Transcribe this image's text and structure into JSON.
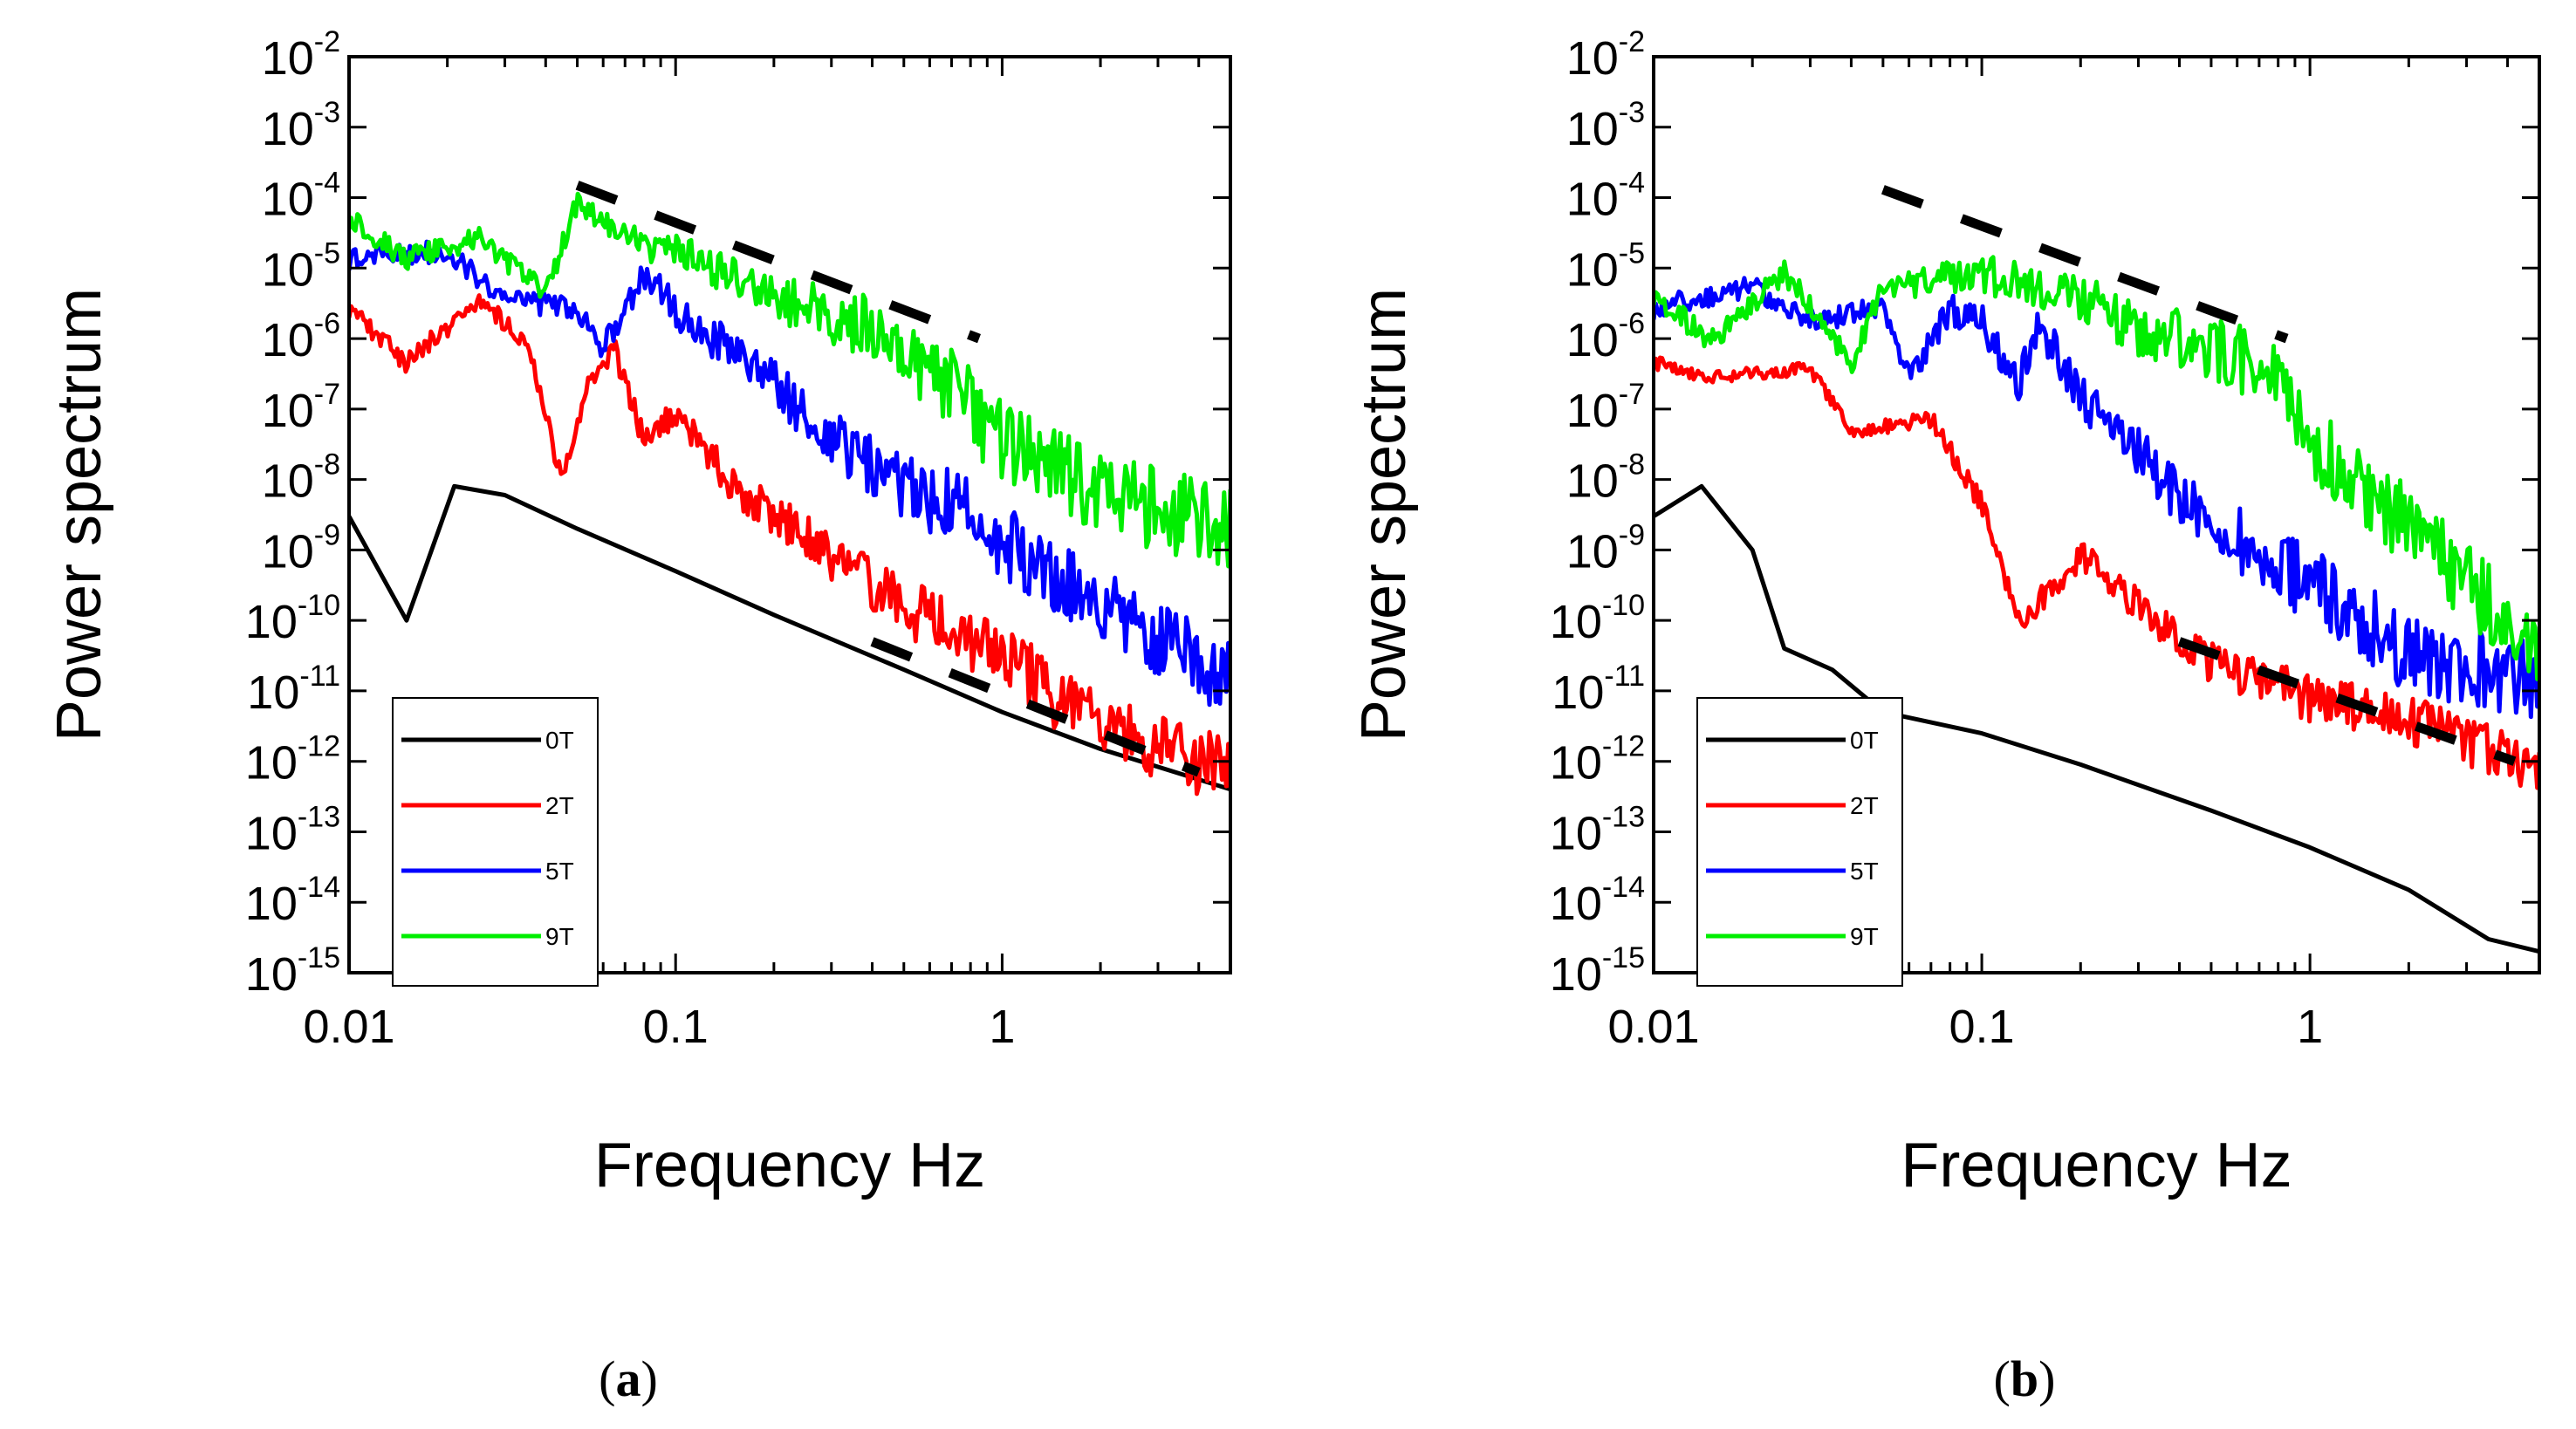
{
  "chart_data": [
    {
      "type": "line",
      "panel": "a",
      "caption_letter": "a",
      "xlabel": "Frequency Hz",
      "ylabel": "Power spectrum",
      "xscale": "log",
      "yscale": "log",
      "xlim": [
        0.01,
        5
      ],
      "ylim": [
        1e-15,
        0.01
      ],
      "x_tick_labels": [
        "0.01",
        "0.1",
        "1"
      ],
      "y_tick_exponents": [
        "-2",
        "-3",
        "-4",
        "-5",
        "-6",
        "-7",
        "-8",
        "-9",
        "-10",
        "-11",
        "-12",
        "-13",
        "-14",
        "-15"
      ],
      "legend_position": "bottom-left",
      "series": [
        {
          "name": "0T",
          "color": "#000000",
          "points": [
            [
              0.01,
              3e-09
            ],
            [
              0.015,
              1e-10
            ],
            [
              0.021,
              8e-09
            ],
            [
              0.03,
              6e-09
            ],
            [
              0.05,
              2e-09
            ],
            [
              0.1,
              5e-10
            ],
            [
              0.2,
              1.2e-10
            ],
            [
              0.5,
              2e-11
            ],
            [
              1,
              5e-12
            ],
            [
              2,
              1.5e-12
            ],
            [
              5,
              4e-13
            ]
          ],
          "noise": 0
        },
        {
          "name": "2T",
          "color": "#ff0000",
          "points": [
            [
              0.01,
              3e-06
            ],
            [
              0.015,
              5e-07
            ],
            [
              0.025,
              4e-06
            ],
            [
              0.035,
              1e-06
            ],
            [
              0.045,
              1e-08
            ],
            [
              0.055,
              3e-07
            ],
            [
              0.065,
              8e-07
            ],
            [
              0.08,
              4e-08
            ],
            [
              0.1,
              1e-07
            ],
            [
              0.15,
              1e-08
            ],
            [
              0.2,
              4e-09
            ],
            [
              0.3,
              1e-09
            ],
            [
              0.5,
              2e-10
            ],
            [
              1,
              5e-11
            ],
            [
              1.5,
              1e-11
            ],
            [
              2,
              4e-12
            ],
            [
              5,
              1e-12
            ]
          ],
          "noise": 0.7
        },
        {
          "name": "5T",
          "color": "#0000ff",
          "points": [
            [
              0.01,
              1.5e-05
            ],
            [
              0.02,
              2e-05
            ],
            [
              0.03,
              4e-06
            ],
            [
              0.05,
              3e-06
            ],
            [
              0.06,
              8e-07
            ],
            [
              0.08,
              1e-05
            ],
            [
              0.1,
              3e-06
            ],
            [
              0.2,
              3e-07
            ],
            [
              0.3,
              5e-08
            ],
            [
              0.5,
              1e-08
            ],
            [
              0.8,
              5e-09
            ],
            [
              1,
              2e-09
            ],
            [
              2,
              3e-10
            ],
            [
              5,
              2e-11
            ]
          ],
          "noise": 0.8
        },
        {
          "name": "9T",
          "color": "#00ee00",
          "points": [
            [
              0.01,
              6e-05
            ],
            [
              0.015,
              1.5e-05
            ],
            [
              0.025,
              3e-05
            ],
            [
              0.04,
              5e-06
            ],
            [
              0.05,
              0.0001
            ],
            [
              0.07,
              3e-05
            ],
            [
              0.1,
              2e-05
            ],
            [
              0.2,
              5e-06
            ],
            [
              0.4,
              2e-06
            ],
            [
              0.7,
              3e-07
            ],
            [
              1,
              5e-08
            ],
            [
              2,
              1e-08
            ],
            [
              5,
              3e-09
            ]
          ],
          "noise": 0.85
        }
      ],
      "reference_lines": [
        {
          "style": "dashed",
          "points": [
            [
              0.05,
              0.00015
            ],
            [
              0.85,
              1e-06
            ]
          ]
        },
        {
          "style": "dashed",
          "points": [
            [
              0.4,
              5e-11
            ],
            [
              4,
              7e-13
            ]
          ]
        }
      ]
    },
    {
      "type": "line",
      "panel": "b",
      "caption_letter": "b",
      "xlabel": "Frequency Hz",
      "ylabel": "Power spectrum",
      "xscale": "log",
      "yscale": "log",
      "xlim": [
        0.01,
        5
      ],
      "ylim": [
        1e-15,
        0.01
      ],
      "x_tick_labels": [
        "0.01",
        "0.1",
        "1"
      ],
      "y_tick_exponents": [
        "-2",
        "-3",
        "-4",
        "-5",
        "-6",
        "-7",
        "-8",
        "-9",
        "-10",
        "-11",
        "-12",
        "-13",
        "-14",
        "-15"
      ],
      "legend_position": "bottom-left",
      "series": [
        {
          "name": "0T",
          "color": "#000000",
          "points": [
            [
              0.01,
              3e-09
            ],
            [
              0.014,
              8e-09
            ],
            [
              0.02,
              1e-09
            ],
            [
              0.025,
              4e-11
            ],
            [
              0.035,
              2e-11
            ],
            [
              0.05,
              5e-12
            ],
            [
              0.1,
              2.5e-12
            ],
            [
              0.2,
              9e-13
            ],
            [
              0.5,
              2e-13
            ],
            [
              1,
              6e-14
            ],
            [
              2,
              1.5e-14
            ],
            [
              3.5,
              3e-15
            ],
            [
              5,
              2e-15
            ]
          ],
          "noise": 0
        },
        {
          "name": "2T",
          "color": "#ff0000",
          "points": [
            [
              0.01,
              5e-07
            ],
            [
              0.015,
              3e-07
            ],
            [
              0.03,
              4e-07
            ],
            [
              0.04,
              5e-08
            ],
            [
              0.06,
              7e-08
            ],
            [
              0.07,
              8e-08
            ],
            [
              0.1,
              5e-09
            ],
            [
              0.13,
              1e-10
            ],
            [
              0.2,
              1e-09
            ],
            [
              0.3,
              2e-10
            ],
            [
              0.5,
              3e-11
            ],
            [
              1,
              1e-11
            ],
            [
              2,
              5e-12
            ],
            [
              5,
              1e-12
            ]
          ],
          "noise": 0.5
        },
        {
          "name": "5T",
          "color": "#0000ff",
          "points": [
            [
              0.01,
              3e-06
            ],
            [
              0.02,
              6e-06
            ],
            [
              0.03,
              2e-06
            ],
            [
              0.05,
              3e-06
            ],
            [
              0.06,
              3e-07
            ],
            [
              0.08,
              3e-06
            ],
            [
              0.1,
              2e-06
            ],
            [
              0.13,
              3e-07
            ],
            [
              0.15,
              2e-06
            ],
            [
              0.2,
              2e-07
            ],
            [
              0.3,
              3e-08
            ],
            [
              0.5,
              3e-09
            ],
            [
              1,
              5e-10
            ],
            [
              2,
              5e-11
            ],
            [
              5,
              2e-11
            ]
          ],
          "noise": 0.8
        },
        {
          "name": "9T",
          "color": "#00ee00",
          "points": [
            [
              0.01,
              5e-06
            ],
            [
              0.015,
              1e-06
            ],
            [
              0.025,
              1e-05
            ],
            [
              0.04,
              5e-07
            ],
            [
              0.05,
              6e-06
            ],
            [
              0.1,
              1e-05
            ],
            [
              0.2,
              5e-06
            ],
            [
              0.3,
              2e-06
            ],
            [
              0.5,
              1e-06
            ],
            [
              0.8,
              5e-07
            ],
            [
              1,
              5e-08
            ],
            [
              2,
              3e-09
            ],
            [
              3,
              6e-10
            ],
            [
              5,
              4e-11
            ]
          ],
          "noise": 0.85
        }
      ],
      "reference_lines": [
        {
          "style": "dashed",
          "points": [
            [
              0.05,
              0.00013
            ],
            [
              0.85,
              1e-06
            ]
          ]
        },
        {
          "style": "dashed",
          "points": [
            [
              0.4,
              5e-11
            ],
            [
              4.2,
              1e-12
            ]
          ]
        }
      ]
    }
  ]
}
